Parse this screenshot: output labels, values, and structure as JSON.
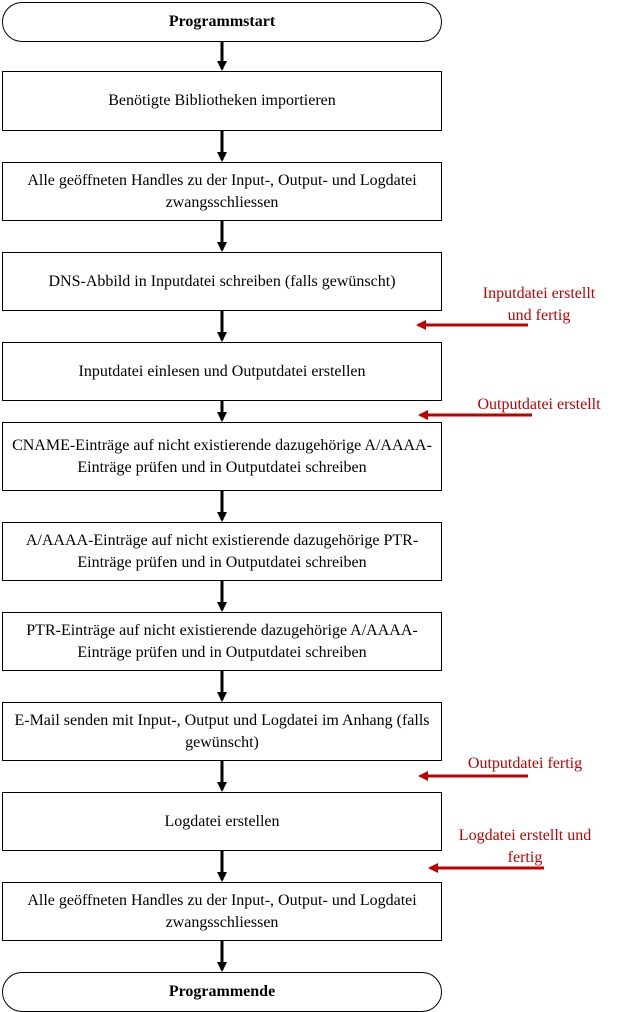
{
  "flow": {
    "start": "Programmstart",
    "steps": [
      "Benötigte Bibliotheken importieren",
      "Alle geöffneten Handles zu der Input-, Output- und Logdatei zwangsschliessen",
      "DNS-Abbild in Inputdatei schreiben (falls gewünscht)",
      "Inputdatei einlesen und Outputdatei erstellen",
      "CNAME-Einträge auf nicht existierende dazugehörige A/AAAA-Einträge prüfen und in Outputdatei schreiben",
      "A/AAAA-Einträge auf nicht existierende dazugehörige PTR-Einträge prüfen und in Outputdatei schreiben",
      "PTR-Einträge auf nicht existierende dazugehörige A/AAAA-Einträge prüfen und in Outputdatei schreiben",
      "E-Mail senden mit Input-, Output und Logdatei im Anhang (falls gewünscht)",
      "Logdatei erstellen",
      "Alle geöffneten Handles zu der Input-, Output- und Logdatei zwangsschliessen"
    ],
    "end": "Programmende"
  },
  "annotations": [
    {
      "line1": "Inputdatei erstellt",
      "line2": "und fertig"
    },
    {
      "line1": "Outputdatei erstellt",
      "line2": ""
    },
    {
      "line1": "Outputdatei fertig",
      "line2": ""
    },
    {
      "line1": "Logdatei erstellt und",
      "line2": "fertig"
    }
  ],
  "colors": {
    "annotation": "#c00000",
    "line": "#000000"
  }
}
